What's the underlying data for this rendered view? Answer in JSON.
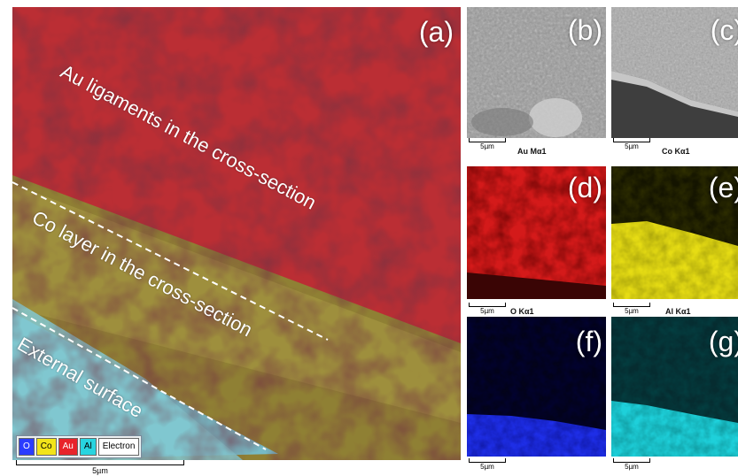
{
  "panels": {
    "a": {
      "label": "(a)"
    },
    "b": {
      "label": "(b)"
    },
    "c": {
      "label": "(c)"
    },
    "d": {
      "label": "(d)"
    },
    "e": {
      "label": "(e)"
    },
    "f": {
      "label": "(f)"
    },
    "g": {
      "label": "(g)"
    }
  },
  "annotations": {
    "au": "Au ligaments in the cross-section",
    "co": "Co layer in the cross-section",
    "ext": "External surface"
  },
  "legend": [
    "O",
    "Co",
    "Au",
    "Al",
    "Electron"
  ],
  "legend_colors": {
    "O": "#2a3cff",
    "Co": "#f2e41a",
    "Au": "#e8232a",
    "Al": "#28d4e0",
    "Electron": "#ffffff"
  },
  "scale": "5µm",
  "element_captions": {
    "d": "Au Mα1",
    "e": "Co Kα1",
    "f": "O Kα1",
    "g": "Al Kα1"
  }
}
